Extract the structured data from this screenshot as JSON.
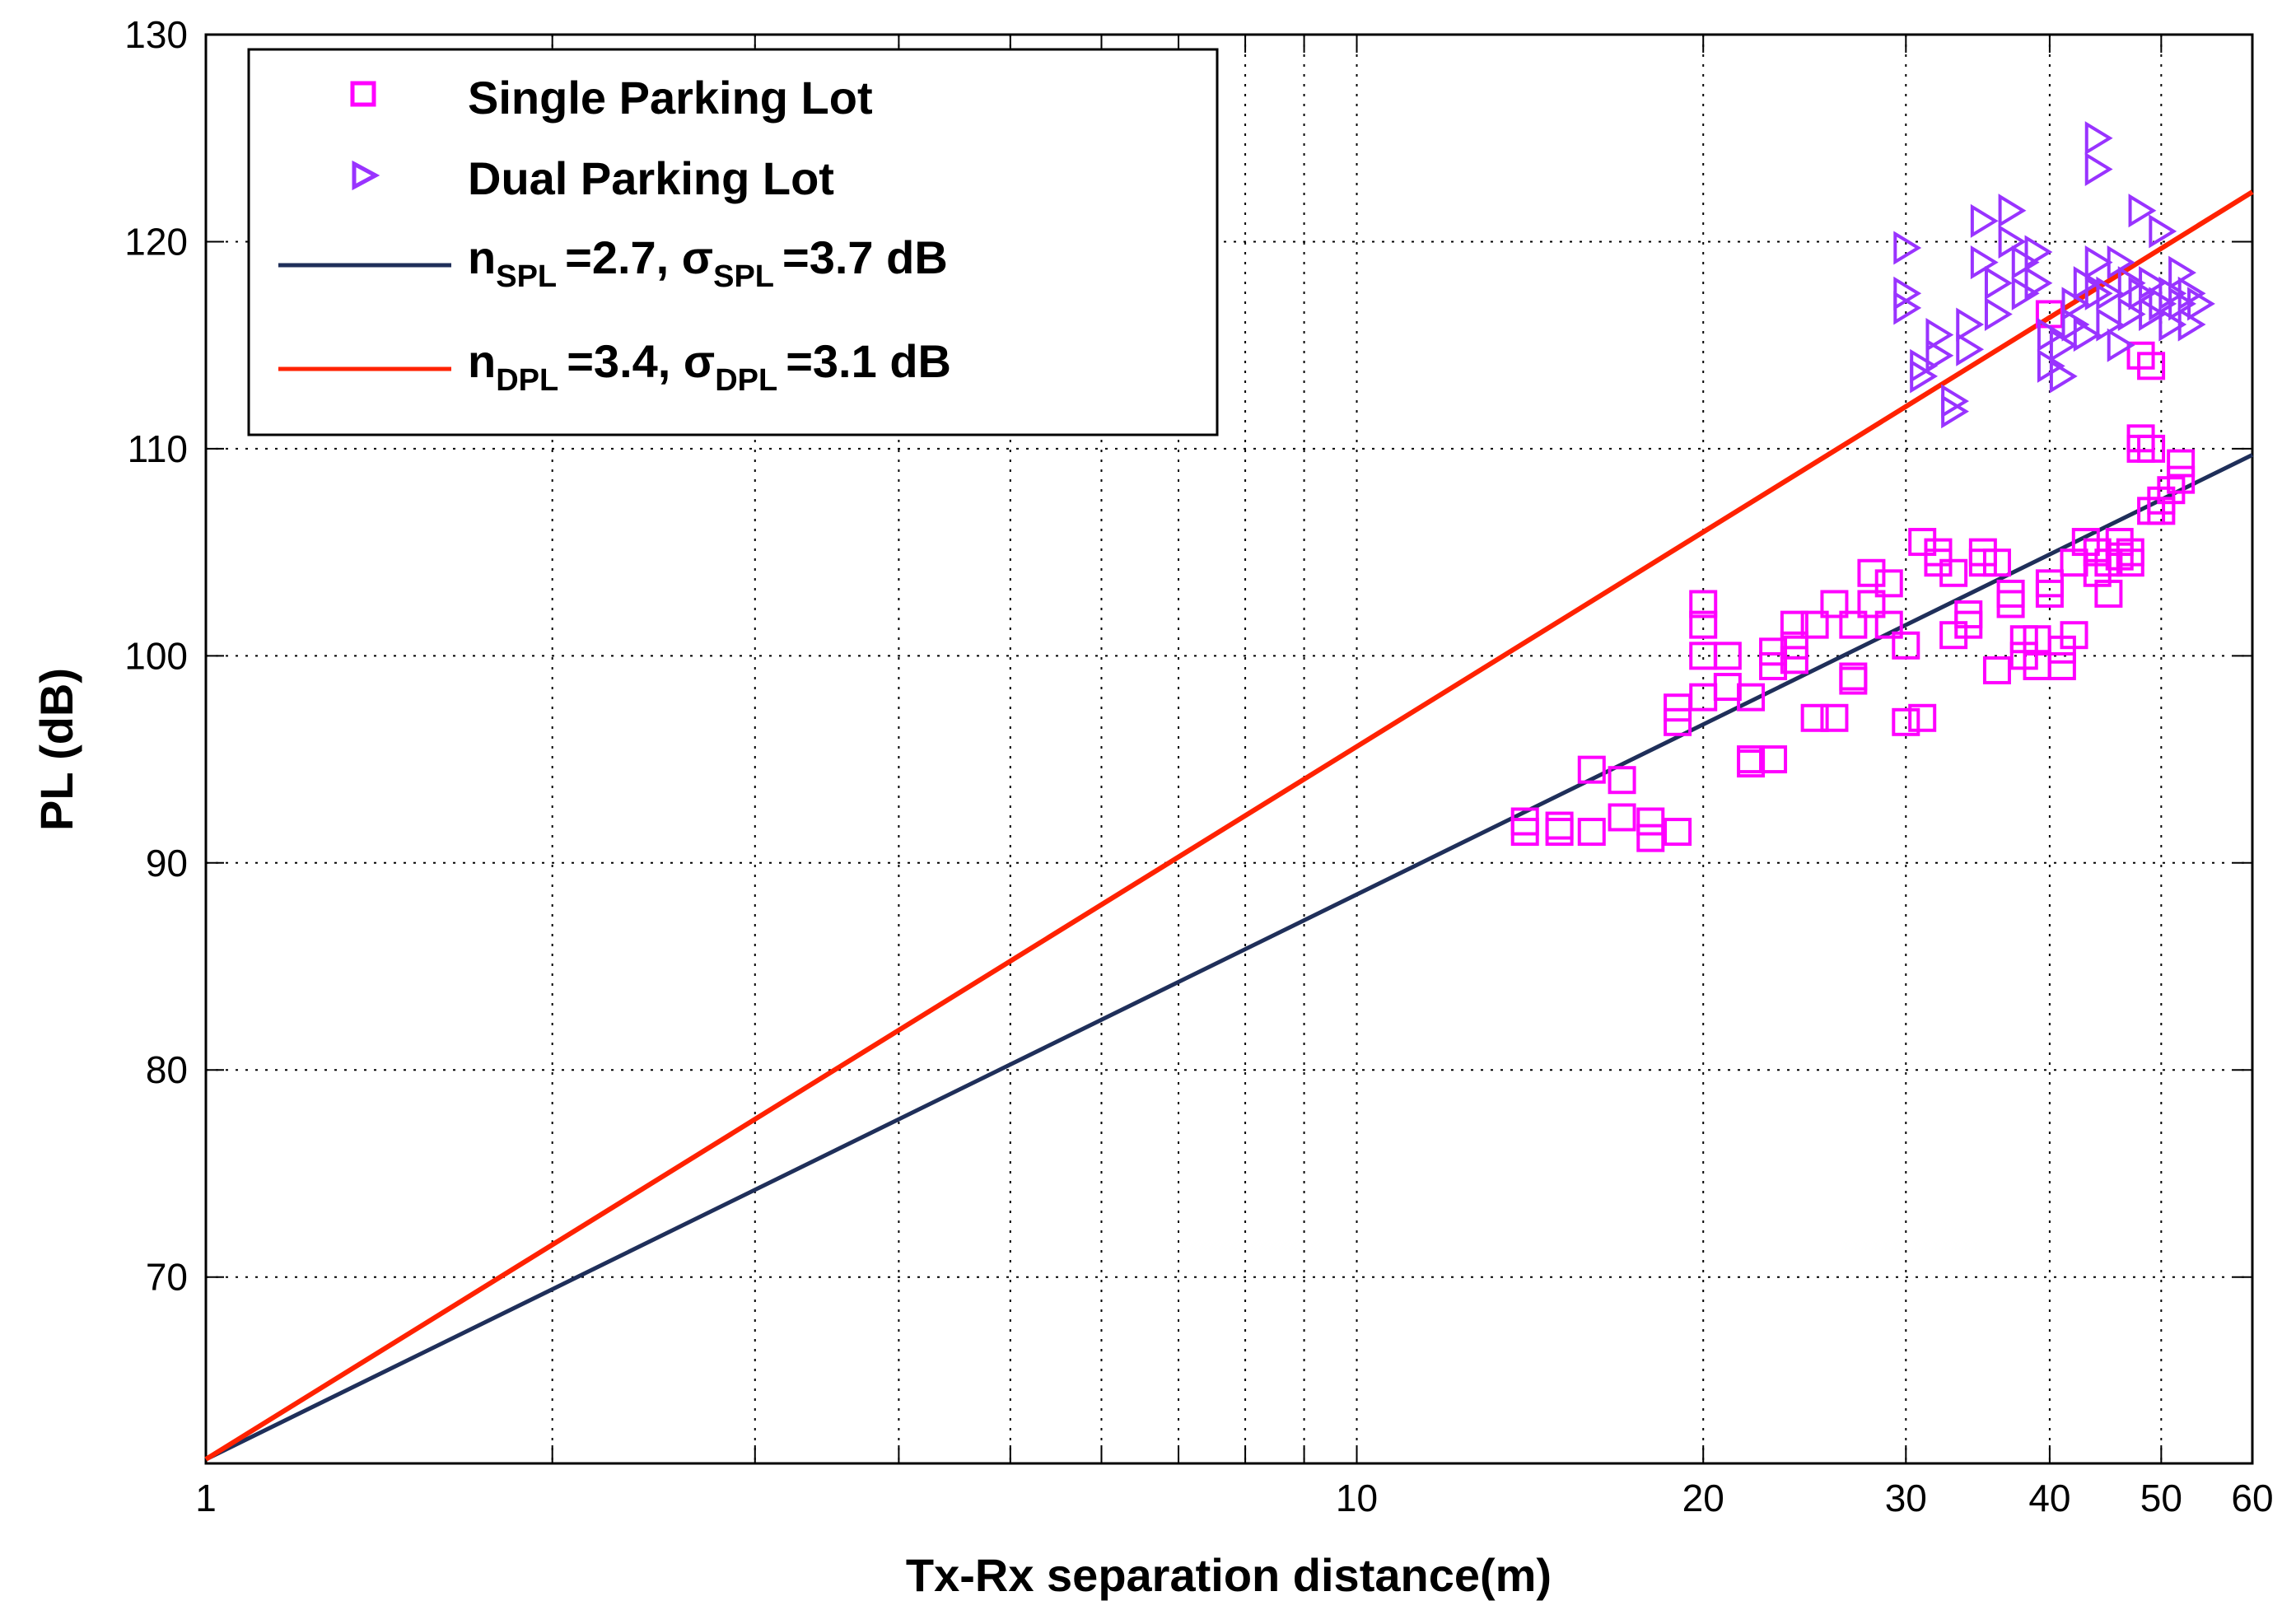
{
  "chart_data": {
    "type": "scatter",
    "title": "",
    "xlabel": "Tx-Rx separation distance(m)",
    "ylabel": "PL (dB)",
    "xscale": "log",
    "xlim": [
      1,
      60
    ],
    "ylim": [
      61,
      130
    ],
    "xticks": [
      1,
      10,
      20,
      30,
      40,
      50,
      60
    ],
    "xtick_labels": [
      "1",
      "10",
      "20",
      "30",
      "40",
      "50",
      "60"
    ],
    "yticks": [
      70,
      80,
      90,
      100,
      110,
      120,
      130
    ],
    "ytick_labels": [
      "70",
      "80",
      "90",
      "100",
      "110",
      "120",
      "130"
    ],
    "grid": true,
    "legend_position": "top-left",
    "colors": {
      "spl_marker": "#ff00ff",
      "dpl_marker": "#9933ff",
      "spl_line": "#1f2f5a",
      "dpl_line": "#ff2200"
    },
    "legend": [
      {
        "type": "marker",
        "marker": "square",
        "color": "#ff00ff",
        "label": "Single Parking Lot"
      },
      {
        "type": "marker",
        "marker": "triangle-right",
        "color": "#9933ff",
        "label": "Dual Parking Lot"
      },
      {
        "type": "line",
        "color": "#1f2f5a",
        "n_sym": "n",
        "n_sub": "SPL",
        "n_val": "=2.7, ",
        "s_sym": "σ",
        "s_sub": "SPL",
        "s_val": "=3.7 dB"
      },
      {
        "type": "line",
        "color": "#ff2200",
        "n_sym": "n",
        "n_sub": "DPL",
        "n_val": "=3.4, ",
        "s_sym": "σ",
        "s_sub": "DPL",
        "s_val": "=3.1 dB"
      }
    ],
    "lines": [
      {
        "name": "n_SPL=2.7 fit",
        "color": "#1f2f5a",
        "x": [
          1,
          60
        ],
        "y": [
          61.2,
          109.7
        ]
      },
      {
        "name": "n_DPL=3.4 fit",
        "color": "#ff2200",
        "x": [
          1,
          60
        ],
        "y": [
          61.2,
          122.4
        ]
      }
    ],
    "series": [
      {
        "name": "Single Parking Lot",
        "marker": "square",
        "color": "#ff00ff",
        "points": [
          [
            14,
            92
          ],
          [
            14,
            91.5
          ],
          [
            15,
            91.8
          ],
          [
            15,
            91.5
          ],
          [
            16,
            94.5
          ],
          [
            16,
            91.5
          ],
          [
            17,
            94
          ],
          [
            17,
            92.2
          ],
          [
            18,
            92
          ],
          [
            18,
            91.2
          ],
          [
            19,
            91.5
          ],
          [
            19,
            97.5
          ],
          [
            19,
            96.8
          ],
          [
            20,
            102.5
          ],
          [
            20,
            101.5
          ],
          [
            20,
            100
          ],
          [
            20,
            98
          ],
          [
            21,
            100
          ],
          [
            21,
            98.5
          ],
          [
            22,
            98
          ],
          [
            22,
            95
          ],
          [
            22,
            94.8
          ],
          [
            23,
            95
          ],
          [
            23,
            99.5
          ],
          [
            23,
            100.2
          ],
          [
            24,
            100.5
          ],
          [
            24,
            101.5
          ],
          [
            24,
            99.8
          ],
          [
            25,
            101.5
          ],
          [
            25,
            97
          ],
          [
            26,
            102.5
          ],
          [
            26,
            97
          ],
          [
            27,
            101.5
          ],
          [
            27,
            99
          ],
          [
            27,
            98.8
          ],
          [
            28,
            104
          ],
          [
            28,
            102.5
          ],
          [
            29,
            103.5
          ],
          [
            29,
            101.5
          ],
          [
            30,
            100.5
          ],
          [
            30,
            96.8
          ],
          [
            31,
            97
          ],
          [
            31,
            105.5
          ],
          [
            32,
            104.5
          ],
          [
            32,
            105
          ],
          [
            33,
            104
          ],
          [
            33,
            101
          ],
          [
            34,
            101.5
          ],
          [
            34,
            102
          ],
          [
            35,
            104.5
          ],
          [
            35,
            105
          ],
          [
            36,
            104.5
          ],
          [
            36,
            99.3
          ],
          [
            37,
            102.5
          ],
          [
            37,
            103
          ],
          [
            38,
            100.8
          ],
          [
            38,
            100
          ],
          [
            39,
            100.8
          ],
          [
            39,
            99.5
          ],
          [
            40,
            103
          ],
          [
            40,
            103.5
          ],
          [
            41,
            100.3
          ],
          [
            41,
            99.5
          ],
          [
            42,
            101
          ],
          [
            42,
            104.5
          ],
          [
            43,
            105.5
          ],
          [
            44,
            104
          ],
          [
            44,
            105
          ],
          [
            45,
            103
          ],
          [
            45,
            104.5
          ],
          [
            46,
            105.5
          ],
          [
            46,
            104.8
          ],
          [
            47,
            105
          ],
          [
            47,
            104.5
          ],
          [
            48,
            110
          ],
          [
            48,
            110.5
          ],
          [
            49,
            110
          ],
          [
            49,
            107
          ],
          [
            50,
            107
          ],
          [
            50,
            107.5
          ],
          [
            51,
            108
          ],
          [
            52,
            108.5
          ],
          [
            52,
            109.3
          ],
          [
            40,
            116.5
          ],
          [
            48,
            114.5
          ],
          [
            49,
            114
          ]
        ]
      },
      {
        "name": "Dual Parking Lot",
        "marker": "triangle-right",
        "color": "#9933ff",
        "points": [
          [
            30,
            119.7
          ],
          [
            30,
            117.5
          ],
          [
            30,
            116.8
          ],
          [
            31,
            114
          ],
          [
            31,
            113.5
          ],
          [
            32,
            115.5
          ],
          [
            32,
            114.5
          ],
          [
            33,
            111.8
          ],
          [
            33,
            112.3
          ],
          [
            34,
            116
          ],
          [
            34,
            114.8
          ],
          [
            35,
            121
          ],
          [
            35,
            119
          ],
          [
            36,
            118
          ],
          [
            36,
            116.5
          ],
          [
            37,
            120
          ],
          [
            37,
            121.5
          ],
          [
            38,
            119
          ],
          [
            38,
            117.5
          ],
          [
            39,
            118
          ],
          [
            39,
            119.5
          ],
          [
            40,
            114
          ],
          [
            40,
            115.5
          ],
          [
            41,
            113.5
          ],
          [
            41,
            115
          ],
          [
            42,
            116
          ],
          [
            42,
            117
          ],
          [
            43,
            118
          ],
          [
            43,
            115.5
          ],
          [
            44,
            119
          ],
          [
            44,
            117.5
          ],
          [
            44,
            125
          ],
          [
            44,
            123.5
          ],
          [
            45,
            116
          ],
          [
            45,
            117.5
          ],
          [
            46,
            115
          ],
          [
            46,
            119
          ],
          [
            47,
            116.5
          ],
          [
            47,
            118
          ],
          [
            48,
            121.5
          ],
          [
            48,
            117.5
          ],
          [
            49,
            118
          ],
          [
            49,
            116.5
          ],
          [
            50,
            117
          ],
          [
            50,
            120.5
          ],
          [
            51,
            117.5
          ],
          [
            51,
            116
          ],
          [
            52,
            118.5
          ],
          [
            52,
            117
          ],
          [
            53,
            116
          ],
          [
            53,
            117.5
          ],
          [
            54,
            117
          ]
        ]
      }
    ]
  }
}
